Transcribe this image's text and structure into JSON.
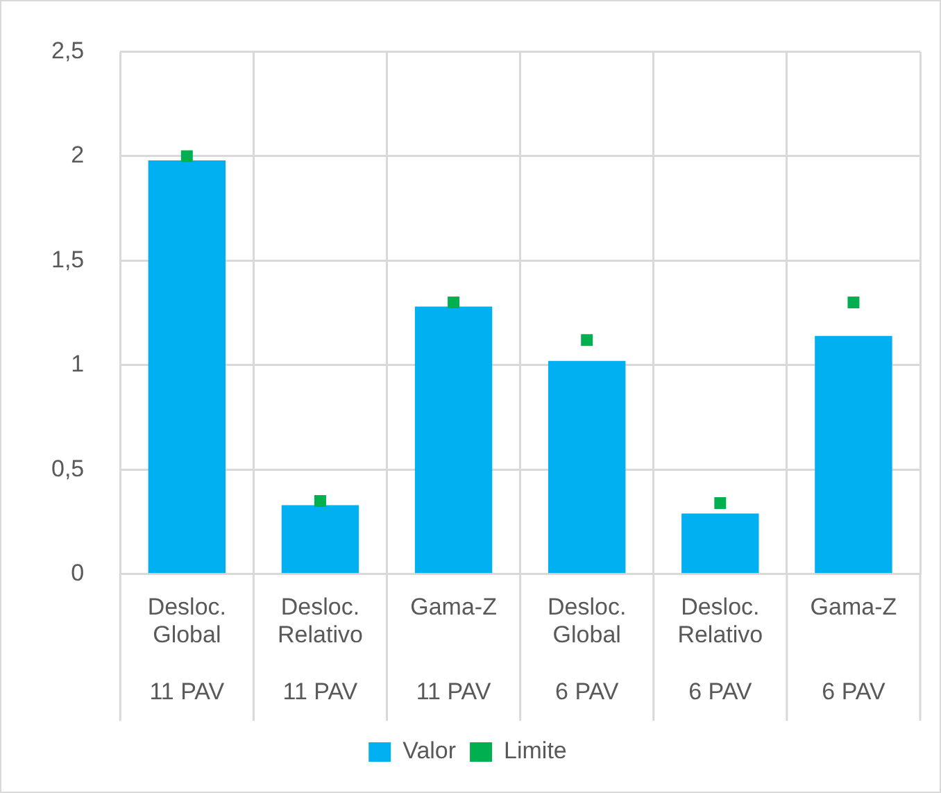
{
  "chart_data": {
    "type": "bar",
    "categories": [
      "Desloc. Global\n11 PAV",
      "Desloc. Relativo\n11 PAV",
      "Gama-Z\n11 PAV",
      "Desloc. Global\n6 PAV",
      "Desloc. Relativo\n6 PAV",
      "Gama-Z\n6 PAV"
    ],
    "series": [
      {
        "name": "Valor",
        "color": "#00b0f0",
        "values": [
          1.98,
          0.33,
          1.28,
          1.02,
          0.29,
          1.14
        ]
      },
      {
        "name": "Limite",
        "type": "scatter",
        "marker": "square",
        "color": "#00b050",
        "values": [
          2.0,
          0.35,
          1.3,
          1.12,
          0.34,
          1.3
        ]
      }
    ],
    "ylim": [
      0,
      2.5
    ],
    "yticks": [
      {
        "value": 0,
        "label": "0"
      },
      {
        "value": 0.5,
        "label": "0,5"
      },
      {
        "value": 1,
        "label": "1"
      },
      {
        "value": 1.5,
        "label": "1,5"
      },
      {
        "value": 2,
        "label": "2"
      },
      {
        "value": 2.5,
        "label": "2,5"
      }
    ],
    "grid": true,
    "legend": "bottom"
  }
}
